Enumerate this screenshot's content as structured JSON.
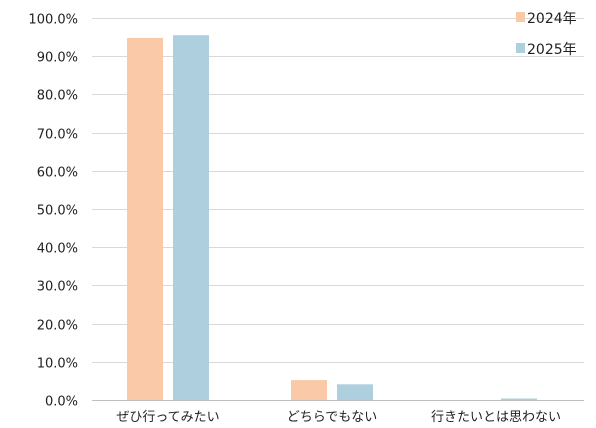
{
  "chart_data": {
    "type": "bar",
    "title": "",
    "xlabel": "",
    "ylabel": "",
    "categories": [
      "ぜひ行ってみたい",
      "どちらでもない",
      "行きたいとは思わない"
    ],
    "series": [
      {
        "name": "2024年",
        "color": "#f9c9a8",
        "values": [
          94.8,
          5.2,
          0.0
        ]
      },
      {
        "name": "2025年",
        "color": "#aecfdd",
        "values": [
          95.5,
          4.1,
          0.4
        ]
      }
    ],
    "ylim": [
      0,
      100
    ],
    "yticks": [
      0,
      10,
      20,
      30,
      40,
      50,
      60,
      70,
      80,
      90,
      100
    ],
    "ytick_labels": [
      "0.0%",
      "10.0%",
      "20.0%",
      "30.0%",
      "40.0%",
      "50.0%",
      "60.0%",
      "70.0%",
      "80.0%",
      "90.0%",
      "100.0%"
    ],
    "grid": true,
    "legend_position": "top-right"
  }
}
